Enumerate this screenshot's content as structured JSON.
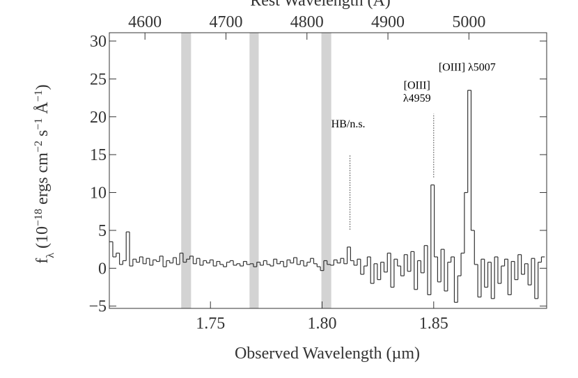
{
  "chart_data": {
    "type": "step",
    "xlabel": "Observed Wavelength (µm)",
    "x2label": "Rest Wavelength (Å)",
    "ylabel": [
      {
        "text": "f"
      },
      {
        "text": "λ",
        "shift": "sub"
      },
      {
        "text": " (10"
      },
      {
        "text": "−18",
        "shift": "super"
      },
      {
        "text": " ergs cm"
      },
      {
        "text": "−2",
        "shift": "super"
      },
      {
        "text": " s"
      },
      {
        "text": "−1",
        "shift": "super"
      },
      {
        "text": " Å"
      },
      {
        "text": "−1",
        "shift": "super"
      },
      {
        "text": ")"
      }
    ],
    "xlim": [
      1.7047,
      1.9006
    ],
    "xticks": [
      {
        "value": 1.75,
        "label": "1.75"
      },
      {
        "value": 1.8,
        "label": "1.80"
      },
      {
        "value": 1.85,
        "label": "1.85"
      }
    ],
    "x2lim": [
      4556,
      5096
    ],
    "x2ticks": [
      4600,
      4700,
      4800,
      4900,
      5000
    ],
    "ylim": [
      -5.3,
      31.1
    ],
    "yticks": [
      {
        "value": -5,
        "label": "−5"
      },
      0,
      5,
      10,
      15,
      20,
      25,
      30
    ],
    "color": "#333333",
    "band_color": "#d3d3d3",
    "bands": [
      [
        1.7369,
        1.7413
      ],
      [
        1.7675,
        1.7716
      ],
      [
        1.7997,
        1.8041
      ]
    ],
    "annotation_lines": [
      {
        "x": 1.8125,
        "y": [
          5.1,
          15.0
        ]
      },
      {
        "x": 1.85,
        "y": [
          12.0,
          20.4
        ]
      }
    ],
    "annotations": [
      {
        "text": "HB/n.s.",
        "x": 1.8041,
        "y": 18.6,
        "anchor": "start"
      },
      {
        "text": "[OIII]",
        "x": 1.8425,
        "y": 23.7,
        "anchor": "middle"
      },
      {
        "text": "λ4959",
        "x": 1.8425,
        "y": 22.0,
        "anchor": "middle"
      },
      {
        "text": "[OIII] λ5007",
        "x": 1.8522,
        "y": 26.1,
        "anchor": "start"
      }
    ],
    "x": [
      1.7055,
      1.707,
      1.7085,
      1.71,
      1.7115,
      1.713,
      1.7145,
      1.716,
      1.7175,
      1.719,
      1.7205,
      1.722,
      1.7235,
      1.725,
      1.7265,
      1.728,
      1.7295,
      1.731,
      1.7325,
      1.734,
      1.7355,
      1.737,
      1.7385,
      1.74,
      1.7415,
      1.743,
      1.7445,
      1.746,
      1.7475,
      1.749,
      1.7505,
      1.752,
      1.7535,
      1.755,
      1.7565,
      1.758,
      1.7595,
      1.761,
      1.7625,
      1.764,
      1.7655,
      1.767,
      1.7685,
      1.77,
      1.7715,
      1.773,
      1.7745,
      1.776,
      1.7775,
      1.779,
      1.7805,
      1.782,
      1.7835,
      1.785,
      1.7865,
      1.788,
      1.7895,
      1.791,
      1.7925,
      1.794,
      1.7955,
      1.797,
      1.7985,
      1.8,
      1.8015,
      1.803,
      1.8045,
      1.806,
      1.8075,
      1.809,
      1.8105,
      1.812,
      1.8135,
      1.815,
      1.8165,
      1.818,
      1.8195,
      1.821,
      1.8225,
      1.824,
      1.8255,
      1.827,
      1.8285,
      1.83,
      1.8315,
      1.833,
      1.8345,
      1.836,
      1.8375,
      1.839,
      1.8405,
      1.842,
      1.8435,
      1.845,
      1.8465,
      1.848,
      1.8495,
      1.851,
      1.8525,
      1.854,
      1.8555,
      1.857,
      1.8585,
      1.86,
      1.8615,
      1.863,
      1.8645,
      1.866,
      1.8675,
      1.869,
      1.8705,
      1.872,
      1.8735,
      1.875,
      1.8765,
      1.878,
      1.8795,
      1.881,
      1.8825,
      1.884,
      1.8855,
      1.887,
      1.8885,
      1.89,
      1.8915,
      1.893,
      1.8945,
      1.896,
      1.8975,
      1.899
    ],
    "values": [
      3.5,
      1.5,
      2.0,
      0.5,
      1.0,
      4.8,
      0.3,
      1.2,
      0.8,
      1.5,
      0.6,
      1.3,
      0.4,
      1.1,
      0.9,
      1.6,
      0.2,
      1.0,
      0.7,
      1.4,
      0.5,
      2.0,
      0.8,
      1.2,
      1.6,
      0.6,
      1.3,
      0.4,
      1.0,
      0.7,
      1.1,
      0.3,
      0.9,
      0.5,
      0.2,
      0.8,
      1.0,
      0.4,
      0.6,
      0.3,
      0.9,
      0.5,
      0.6,
      0.2,
      0.8,
      0.4,
      1.0,
      0.5,
      0.3,
      1.2,
      0.6,
      0.9,
      0.2,
      1.1,
      0.7,
      1.4,
      0.5,
      1.0,
      0.3,
      0.8,
      1.3,
      0.6,
      0.2,
      -0.3,
      1.0,
      0.5,
      0.4,
      1.1,
      0.7,
      1.3,
      0.6,
      2.8,
      1.0,
      0.4,
      1.2,
      -0.8,
      0.3,
      1.5,
      -2.0,
      0.6,
      -1.5,
      0.8,
      -0.5,
      2.0,
      -2.5,
      1.2,
      0.3,
      -1.0,
      1.8,
      -0.4,
      2.2,
      -2.8,
      1.0,
      -0.6,
      3.0,
      -3.5,
      11.0,
      1.5,
      -1.8,
      2.5,
      -3.0,
      0.8,
      1.5,
      -4.5,
      -1.0,
      2.0,
      10.0,
      23.5,
      5.0,
      0.5,
      -3.8,
      1.2,
      -2.5,
      0.8,
      -4.0,
      1.5,
      -2.0,
      0.3,
      1.2,
      -3.5,
      0.9,
      -1.5,
      1.8,
      -0.8,
      0.6,
      -2.2,
      1.3,
      -4.0,
      0.8,
      1.5
    ]
  }
}
